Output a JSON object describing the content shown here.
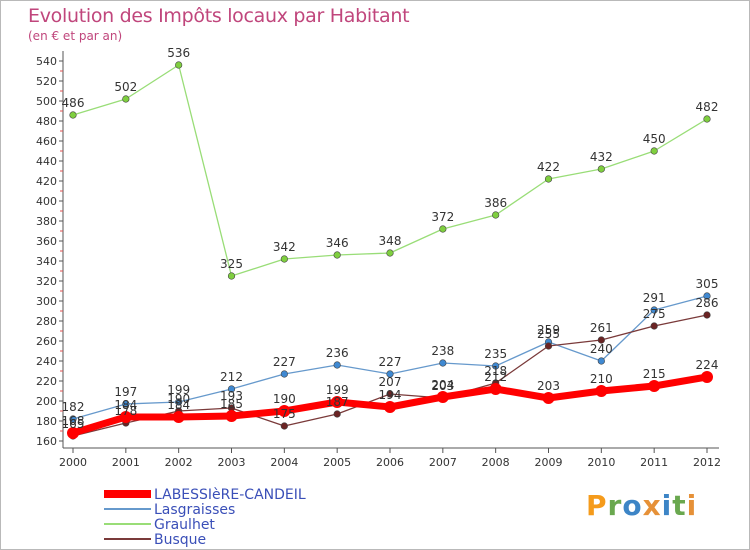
{
  "chart_data": {
    "type": "line",
    "title": "Evolution des Impôts locaux par Habitant",
    "subtitle": "(en € et par an)",
    "xlabel": "",
    "ylabel": "",
    "x": [
      2000,
      2001,
      2002,
      2003,
      2004,
      2005,
      2006,
      2007,
      2008,
      2009,
      2010,
      2011,
      2012
    ],
    "ylim": [
      160,
      540
    ],
    "yticks": [
      160,
      180,
      200,
      220,
      240,
      260,
      280,
      300,
      320,
      340,
      360,
      380,
      400,
      420,
      440,
      460,
      480,
      500,
      520,
      540
    ],
    "grid": false,
    "legend_position": "bottom-left",
    "series": [
      {
        "name": "LABESSIèRE-CANDEIL",
        "color": "#ff0000",
        "values": [
          168,
          184,
          184,
          185,
          190,
          199,
          194,
          204,
          212,
          203,
          210,
          215,
          224
        ],
        "labels": [
          "168",
          "184",
          "184",
          "185",
          "190",
          "199",
          "194",
          "204",
          "212",
          "203",
          "210",
          "215",
          "224"
        ]
      },
      {
        "name": "Lasgraisses",
        "color": "#6699cc",
        "marker": "#3f89d2",
        "values": [
          182,
          197,
          199,
          212,
          227,
          236,
          227,
          238,
          235,
          259,
          240,
          291,
          305
        ],
        "labels": [
          "182",
          "197",
          "199",
          "212",
          "227",
          "236",
          "227",
          "238",
          "235",
          "259",
          "240",
          "291",
          "305"
        ]
      },
      {
        "name": "Graulhet",
        "color": "#99dd77",
        "marker": "#7fcf3f",
        "values": [
          486,
          502,
          536,
          325,
          342,
          346,
          348,
          372,
          386,
          422,
          432,
          450,
          482
        ],
        "labels": [
          "486",
          "502",
          "536",
          "325",
          "342",
          "346",
          "348",
          "372",
          "386",
          "422",
          "432",
          "450",
          "482"
        ]
      },
      {
        "name": "Busque",
        "color": "#7a3a3a",
        "marker": "#6b2424",
        "values": [
          165,
          178,
          190,
          193,
          175,
          187,
          207,
          203,
          218,
          255,
          261,
          275,
          286
        ],
        "labels": [
          "165",
          "178",
          "190",
          "193",
          "175",
          "187",
          "207",
          "203",
          "218",
          "255",
          "261",
          "275",
          "286"
        ]
      }
    ]
  },
  "brand": {
    "letters": [
      "P",
      "r",
      "o",
      "x",
      "i",
      "t",
      "i"
    ],
    "colors": [
      "#f59b1b",
      "#6aa84f",
      "#3d85c6",
      "#e69138",
      "#3d85c6",
      "#6aa84f",
      "#e69138"
    ]
  }
}
